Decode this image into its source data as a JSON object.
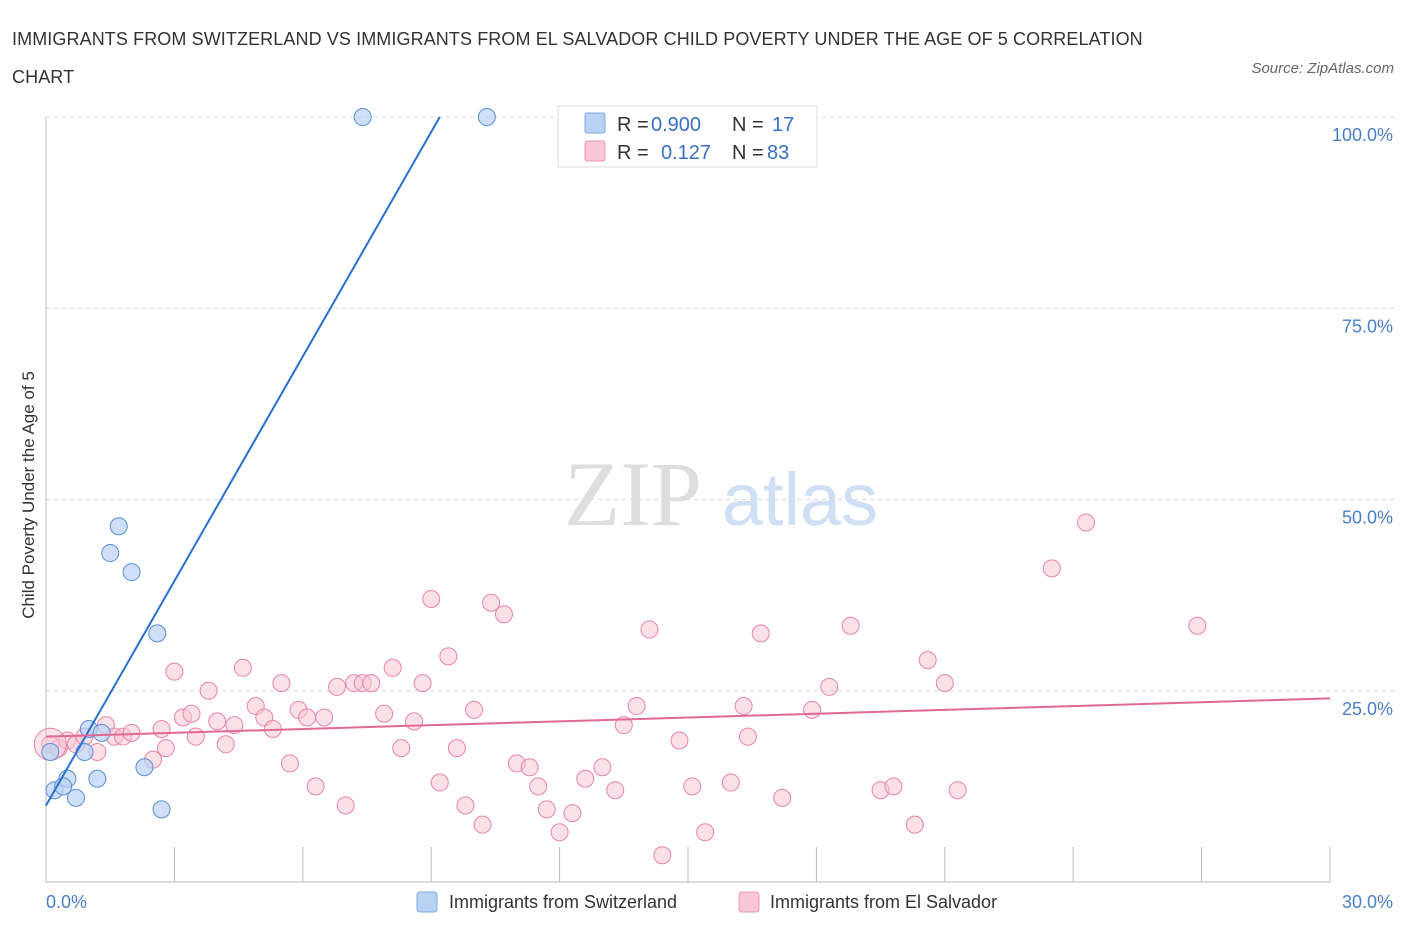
{
  "title": "IMMIGRANTS FROM SWITZERLAND VS IMMIGRANTS FROM EL SALVADOR CHILD POVERTY UNDER THE AGE OF 5 CORRELATION CHART",
  "source": "Source: ZipAtlas.com",
  "watermark": {
    "zip": "ZIP",
    "atlas": "atlas"
  },
  "legend": {
    "r_label": "R =",
    "n_label": "N =",
    "rows": [
      {
        "r": "0.900",
        "n": "17",
        "color": "#aecbf2"
      },
      {
        "r": "0.127",
        "n": "83",
        "color": "#f7bfd1"
      }
    ]
  },
  "colors": {
    "blue": "#5b8fd6",
    "blue_fill": "#b9d2f3",
    "blue_line": "#2a6fd0",
    "pink": "#e886a6",
    "pink_fill": "#f8c6d6",
    "pink_line": "#e06a93",
    "tick": "#4a7fc7"
  },
  "chart_data": {
    "type": "scatter",
    "title": "IMMIGRANTS FROM SWITZERLAND VS IMMIGRANTS FROM EL SALVADOR CHILD POVERTY UNDER THE AGE OF 5 CORRELATION CHART",
    "xlabel": "",
    "ylabel": "Child Poverty Under the Age of 5",
    "xlim": [
      0,
      30
    ],
    "ylim": [
      0,
      100
    ],
    "x_tick_labels": [
      "0.0%",
      "30.0%"
    ],
    "y_ticks": [
      25,
      50,
      75,
      100
    ],
    "y_tick_labels": [
      "25.0%",
      "50.0%",
      "75.0%",
      "100.0%"
    ],
    "grid": "horizontal dashed",
    "legend_position": "top-center",
    "series": [
      {
        "name": "Immigrants from Switzerland",
        "color": "#5b8fd6",
        "trend": {
          "x": [
            0.0,
            9.2
          ],
          "y": [
            10.0,
            100.0
          ]
        },
        "points": [
          [
            7.4,
            100.0
          ],
          [
            10.3,
            100.0
          ],
          [
            1.7,
            46.5
          ],
          [
            1.5,
            43.0
          ],
          [
            2.0,
            40.5
          ],
          [
            2.6,
            32.5
          ],
          [
            1.0,
            20.0
          ],
          [
            1.3,
            19.5
          ],
          [
            0.9,
            17.0
          ],
          [
            0.1,
            17.0
          ],
          [
            2.3,
            15.0
          ],
          [
            1.2,
            13.5
          ],
          [
            0.5,
            13.5
          ],
          [
            0.2,
            12.0
          ],
          [
            0.4,
            12.5
          ],
          [
            0.7,
            11.0
          ],
          [
            2.7,
            9.5
          ]
        ]
      },
      {
        "name": "Immigrants from El Salvador",
        "color": "#e886a6",
        "trend": {
          "x": [
            0.0,
            30.0
          ],
          "y": [
            19.0,
            24.0
          ]
        },
        "points": [
          [
            0.1,
            18.0
          ],
          [
            0.3,
            17.5
          ],
          [
            0.5,
            18.5
          ],
          [
            0.7,
            18.0
          ],
          [
            0.9,
            19.0
          ],
          [
            1.2,
            17.0
          ],
          [
            1.4,
            20.5
          ],
          [
            1.6,
            19.0
          ],
          [
            1.8,
            19.0
          ],
          [
            2.0,
            19.5
          ],
          [
            2.5,
            16.0
          ],
          [
            2.7,
            20.0
          ],
          [
            2.8,
            17.5
          ],
          [
            3.0,
            27.5
          ],
          [
            3.2,
            21.5
          ],
          [
            3.4,
            22.0
          ],
          [
            3.5,
            19.0
          ],
          [
            3.8,
            25.0
          ],
          [
            4.0,
            21.0
          ],
          [
            4.2,
            18.0
          ],
          [
            4.4,
            20.5
          ],
          [
            4.6,
            28.0
          ],
          [
            4.9,
            23.0
          ],
          [
            5.1,
            21.5
          ],
          [
            5.3,
            20.0
          ],
          [
            5.5,
            26.0
          ],
          [
            5.7,
            15.5
          ],
          [
            5.9,
            22.5
          ],
          [
            6.1,
            21.5
          ],
          [
            6.3,
            12.5
          ],
          [
            6.5,
            21.5
          ],
          [
            6.8,
            25.5
          ],
          [
            7.0,
            10.0
          ],
          [
            7.2,
            26.0
          ],
          [
            7.4,
            26.0
          ],
          [
            7.6,
            26.0
          ],
          [
            7.9,
            22.0
          ],
          [
            8.1,
            28.0
          ],
          [
            8.3,
            17.5
          ],
          [
            8.6,
            21.0
          ],
          [
            8.8,
            26.0
          ],
          [
            9.0,
            37.0
          ],
          [
            9.2,
            13.0
          ],
          [
            9.4,
            29.5
          ],
          [
            9.6,
            17.5
          ],
          [
            9.8,
            10.0
          ],
          [
            10.0,
            22.5
          ],
          [
            10.2,
            7.5
          ],
          [
            10.4,
            36.5
          ],
          [
            10.7,
            35.0
          ],
          [
            11.0,
            15.5
          ],
          [
            11.3,
            15.0
          ],
          [
            11.5,
            12.5
          ],
          [
            11.7,
            9.5
          ],
          [
            12.0,
            6.5
          ],
          [
            12.3,
            9.0
          ],
          [
            12.6,
            13.5
          ],
          [
            13.0,
            15.0
          ],
          [
            13.3,
            12.0
          ],
          [
            13.5,
            20.5
          ],
          [
            13.8,
            23.0
          ],
          [
            14.1,
            33.0
          ],
          [
            14.4,
            3.5
          ],
          [
            14.8,
            18.5
          ],
          [
            15.1,
            12.5
          ],
          [
            15.4,
            6.5
          ],
          [
            16.0,
            13.0
          ],
          [
            16.3,
            23.0
          ],
          [
            16.4,
            19.0
          ],
          [
            16.7,
            32.5
          ],
          [
            17.2,
            11.0
          ],
          [
            17.9,
            22.5
          ],
          [
            18.3,
            25.5
          ],
          [
            18.8,
            33.5
          ],
          [
            19.5,
            12.0
          ],
          [
            19.8,
            12.5
          ],
          [
            20.3,
            7.5
          ],
          [
            20.6,
            29.0
          ],
          [
            21.0,
            26.0
          ],
          [
            21.3,
            12.0
          ],
          [
            23.5,
            41.0
          ],
          [
            24.3,
            47.0
          ],
          [
            26.9,
            33.5
          ]
        ]
      }
    ]
  },
  "axis": {
    "ylabel": "Child Poverty Under the Age of 5",
    "x_min_label": "0.0%",
    "x_max_label": "30.0%"
  }
}
